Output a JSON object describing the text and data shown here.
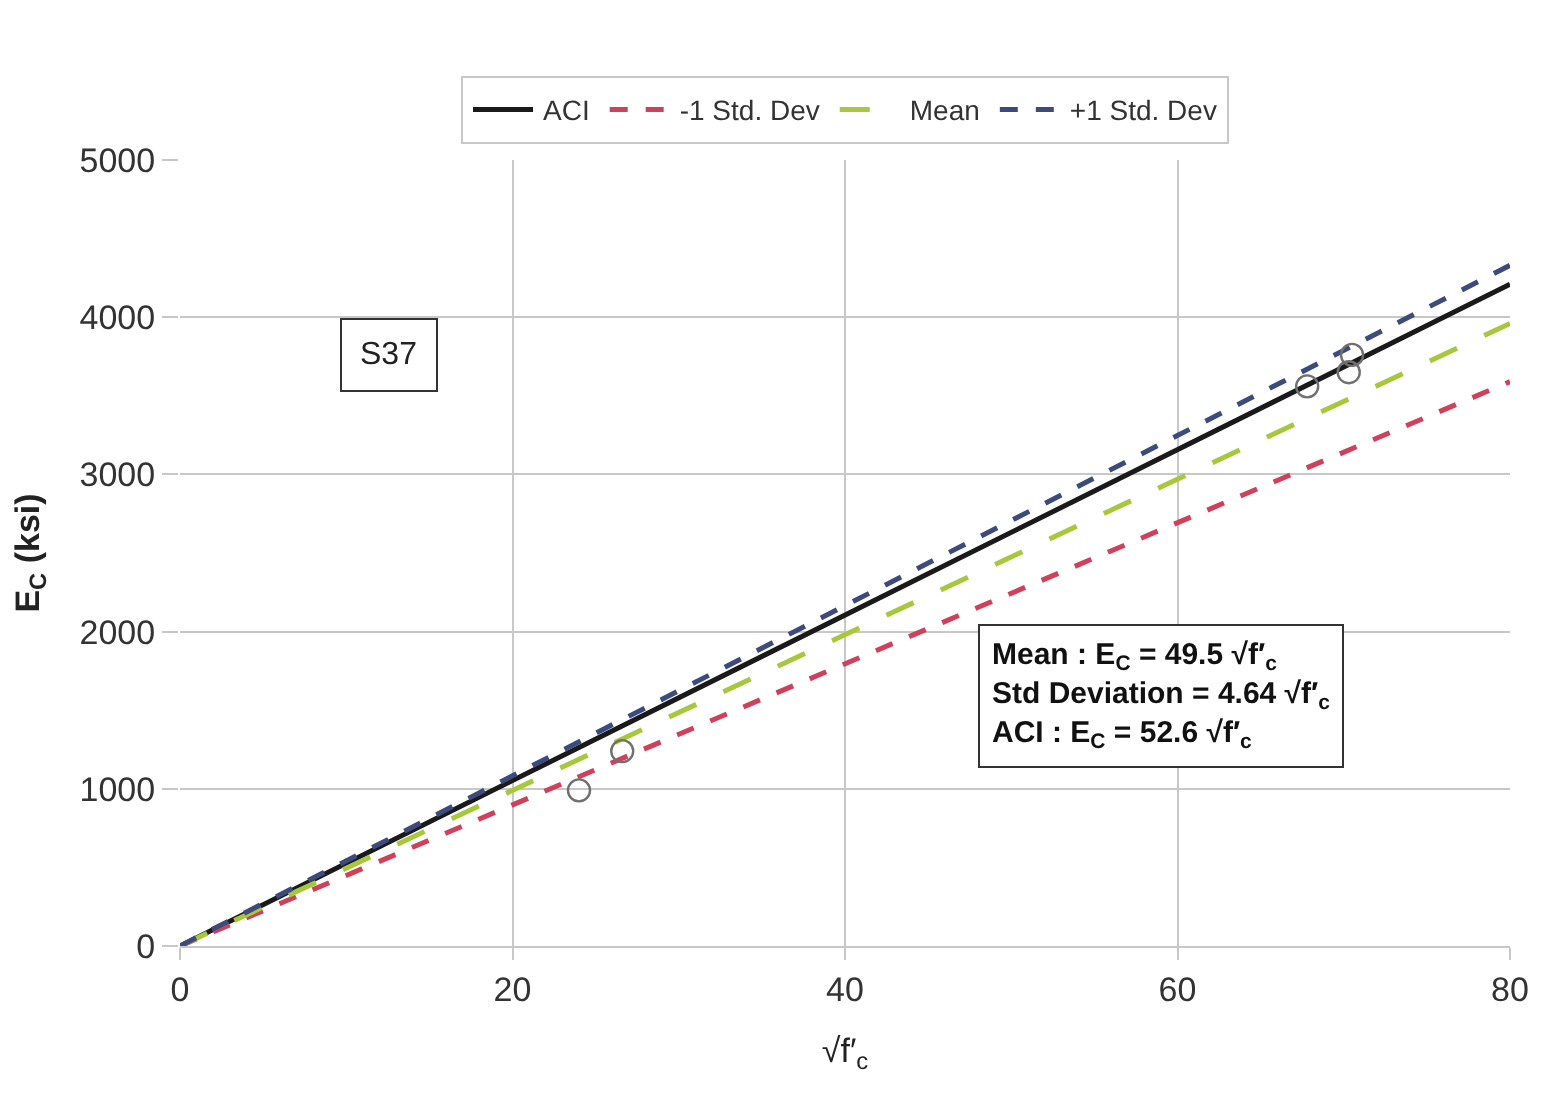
{
  "chart_data": {
    "type": "line",
    "xlabel": "√f′$_{c}$",
    "ylabel": "E$_{C}$ (ksi)",
    "xlim": [
      0,
      80
    ],
    "xticks": [
      0,
      20,
      40,
      60,
      80
    ],
    "ylim": [
      0,
      5000
    ],
    "yticks": [
      0,
      1000,
      2000,
      3000,
      4000,
      5000
    ],
    "grid": true,
    "legend": "top",
    "series": [
      {
        "name": "ACI",
        "color": "#1a1a1a",
        "x": [
          0,
          80
        ],
        "values": [
          0,
          4210
        ],
        "line_style": "solid"
      },
      {
        "name": "-1 Std. Dev",
        "color": "#d0405a",
        "x": [
          0,
          80
        ],
        "values": [
          0,
          3590
        ],
        "line_style": "dashed"
      },
      {
        "name": "Mean",
        "color": "#a8c83c",
        "x": [
          0,
          80
        ],
        "values": [
          0,
          3960
        ],
        "line_style": "longdash"
      },
      {
        "name": "+1 Std. Dev",
        "color": "#3c4a7c",
        "x": [
          0,
          80
        ],
        "values": [
          0,
          4330
        ],
        "line_style": "dashed"
      },
      {
        "type": "scatter",
        "color": "#707070",
        "marker": "circle",
        "x": [
          24,
          26.6,
          67.8,
          70.3,
          70.5
        ],
        "values": [
          990,
          1240,
          3560,
          3650,
          3760
        ]
      }
    ],
    "annotations": [
      "S37",
      "Mean : E$_{C}$ = 49.5 √f′$_{c}$",
      "Std Deviation = 4.64 √f′$_{c}$",
      "ACI : E$_{C}$ = 52.6 √f′$_{c}$"
    ]
  }
}
